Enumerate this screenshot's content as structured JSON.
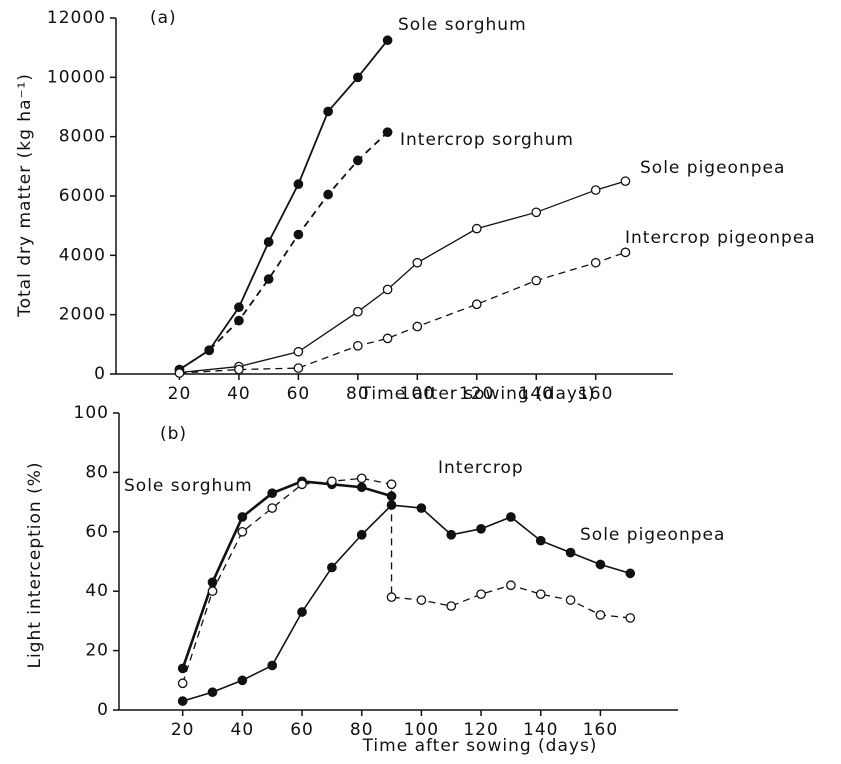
{
  "chart_data": [
    {
      "type": "line",
      "panel_label": "(a)",
      "xlabel": "Time after sowing (days)",
      "ylabel": "Total dry matter (kg ha⁻¹)",
      "xlim": [
        0,
        186
      ],
      "xticks": [
        20,
        40,
        60,
        80,
        100,
        120,
        140,
        160
      ],
      "ylim": [
        0,
        12000
      ],
      "yticks": [
        0,
        2000,
        4000,
        6000,
        8000,
        10000,
        12000
      ],
      "series": [
        {
          "name": "Sole sorghum",
          "color": "#111111",
          "marker": "filled",
          "dash": false,
          "width": 1.8,
          "x": [
            20,
            30,
            40,
            50,
            60,
            70,
            80,
            90
          ],
          "values": [
            150,
            800,
            2250,
            4450,
            6400,
            8850,
            10000,
            11250
          ]
        },
        {
          "name": "Intercrop sorghum",
          "color": "#111111",
          "marker": "filled",
          "dash": true,
          "width": 1.8,
          "x": [
            20,
            30,
            40,
            50,
            60,
            70,
            80,
            90
          ],
          "values": [
            150,
            800,
            1800,
            3200,
            4700,
            6050,
            7200,
            8150
          ]
        },
        {
          "name": "Sole pigeonpea",
          "color": "#111111",
          "marker": "open",
          "dash": false,
          "width": 1.3,
          "x": [
            20,
            40,
            60,
            80,
            90,
            100,
            120,
            140,
            160,
            170
          ],
          "values": [
            50,
            250,
            750,
            2100,
            2850,
            3750,
            4900,
            5450,
            6200,
            6500
          ]
        },
        {
          "name": "Intercrop pigeonpea",
          "color": "#111111",
          "marker": "open",
          "dash": true,
          "width": 1.3,
          "x": [
            20,
            40,
            60,
            80,
            90,
            100,
            120,
            140,
            160,
            170
          ],
          "values": [
            30,
            150,
            200,
            950,
            1200,
            1600,
            2350,
            3150,
            3750,
            4100
          ]
        }
      ]
    },
    {
      "type": "line",
      "panel_label": "(b)",
      "xlabel": "Time after sowing (days)",
      "ylabel": "Light interception (%)",
      "xlim": [
        0,
        186
      ],
      "xticks": [
        20,
        40,
        60,
        80,
        100,
        120,
        140,
        160
      ],
      "ylim": [
        0,
        100
      ],
      "yticks": [
        0,
        20,
        40,
        60,
        80,
        100
      ],
      "series": [
        {
          "name": "Sole sorghum",
          "color": "#111111",
          "marker": "filled",
          "dash": false,
          "width": 2.6,
          "x": [
            20,
            30,
            40,
            50,
            60,
            70,
            80,
            90
          ],
          "values": [
            14,
            43,
            65,
            73,
            77,
            76,
            75,
            72
          ]
        },
        {
          "name": "Intercrop",
          "color": "#111111",
          "marker": "open",
          "dash": true,
          "width": 1.3,
          "x": [
            20,
            30,
            40,
            50,
            60,
            70,
            80,
            90,
            90,
            100,
            110,
            120,
            130,
            140,
            150,
            160,
            170
          ],
          "values": [
            9,
            40,
            60,
            68,
            76,
            77,
            78,
            76,
            38,
            37,
            35,
            39,
            42,
            39,
            37,
            32,
            31
          ]
        },
        {
          "name": "Sole pigeonpea",
          "color": "#111111",
          "marker": "filled",
          "dash": false,
          "width": 1.6,
          "x": [
            20,
            30,
            40,
            50,
            60,
            70,
            80,
            90,
            100,
            110,
            120,
            130,
            140,
            150,
            160,
            170
          ],
          "values": [
            3,
            6,
            10,
            15,
            33,
            48,
            59,
            69,
            68,
            59,
            61,
            65,
            57,
            53,
            49,
            46
          ]
        }
      ]
    }
  ]
}
